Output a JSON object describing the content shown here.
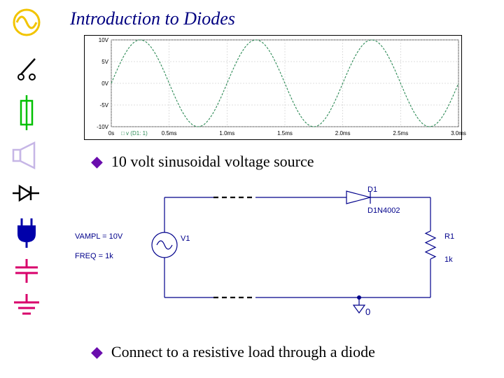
{
  "title": "Introduction to Diodes",
  "bullets": {
    "b1": "10 volt sinusoidal voltage source",
    "b2": "Connect to a resistive load through a diode"
  },
  "waveform": {
    "type": "line",
    "ylim": [
      -10,
      10
    ],
    "ytick_labels": [
      "10V",
      "5V",
      "0V",
      "-5V",
      "-10V"
    ],
    "xlim": [
      0,
      3.0
    ],
    "xtick_step": 0.5,
    "xtick_labels": [
      "0s",
      "0.5ms",
      "1.0ms",
      "1.5ms",
      "2.0ms",
      "2.5ms",
      "3.0ms"
    ],
    "series_label": "v (D1: 1)",
    "line_color": "#2e8b57",
    "grid_color": "#bfbfbf",
    "background_color": "#ffffff",
    "amplitude": 10,
    "periods": 3,
    "dash_pattern": "3,2"
  },
  "circuit": {
    "wire_color": "#00008b",
    "dash_color": "#000000",
    "labels": {
      "d1": "D1",
      "d1_type": "D1N4002",
      "r1": "R1",
      "r1_val": "1k",
      "v1": "V1",
      "vampl": "VAMPL = 10V",
      "freq": "FREQ = 1k",
      "gnd": "0"
    }
  },
  "left_icons": {
    "sine_color": "#f2c400",
    "switch_color": "#000000",
    "fuse_color": "#00c000",
    "speaker_color": "#c6b6e6",
    "diode_color": "#000000",
    "plug_color": "#0000aa",
    "cap_color": "#d8006b",
    "gnd_color": "#d8006b"
  }
}
